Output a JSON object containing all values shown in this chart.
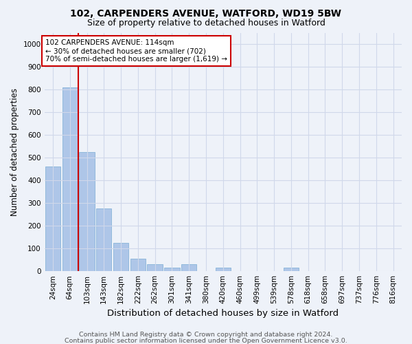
{
  "title": "102, CARPENDERS AVENUE, WATFORD, WD19 5BW",
  "subtitle": "Size of property relative to detached houses in Watford",
  "xlabel": "Distribution of detached houses by size in Watford",
  "ylabel": "Number of detached properties",
  "bar_labels": [
    "24sqm",
    "64sqm",
    "103sqm",
    "143sqm",
    "182sqm",
    "222sqm",
    "262sqm",
    "301sqm",
    "341sqm",
    "380sqm",
    "420sqm",
    "460sqm",
    "499sqm",
    "539sqm",
    "578sqm",
    "618sqm",
    "658sqm",
    "697sqm",
    "737sqm",
    "776sqm",
    "816sqm"
  ],
  "bar_values": [
    460,
    810,
    525,
    275,
    125,
    55,
    30,
    15,
    30,
    0,
    15,
    0,
    0,
    0,
    15,
    0,
    0,
    0,
    0,
    0,
    0
  ],
  "bar_color": "#aec6e8",
  "bar_edge_color": "#7aadd4",
  "vline_x": 1.5,
  "vline_color": "#cc0000",
  "annotation_text": "102 CARPENDERS AVENUE: 114sqm\n← 30% of detached houses are smaller (702)\n70% of semi-detached houses are larger (1,619) →",
  "annotation_box_color": "#ffffff",
  "annotation_box_edge": "#cc0000",
  "ylim": [
    0,
    1050
  ],
  "yticks": [
    0,
    100,
    200,
    300,
    400,
    500,
    600,
    700,
    800,
    900,
    1000
  ],
  "footer1": "Contains HM Land Registry data © Crown copyright and database right 2024.",
  "footer2": "Contains public sector information licensed under the Open Government Licence v3.0.",
  "bg_color": "#eef2f9",
  "grid_color": "#d0d8ea",
  "title_fontsize": 10,
  "subtitle_fontsize": 9,
  "axis_label_fontsize": 8.5,
  "tick_fontsize": 7.5,
  "footer_fontsize": 6.8
}
